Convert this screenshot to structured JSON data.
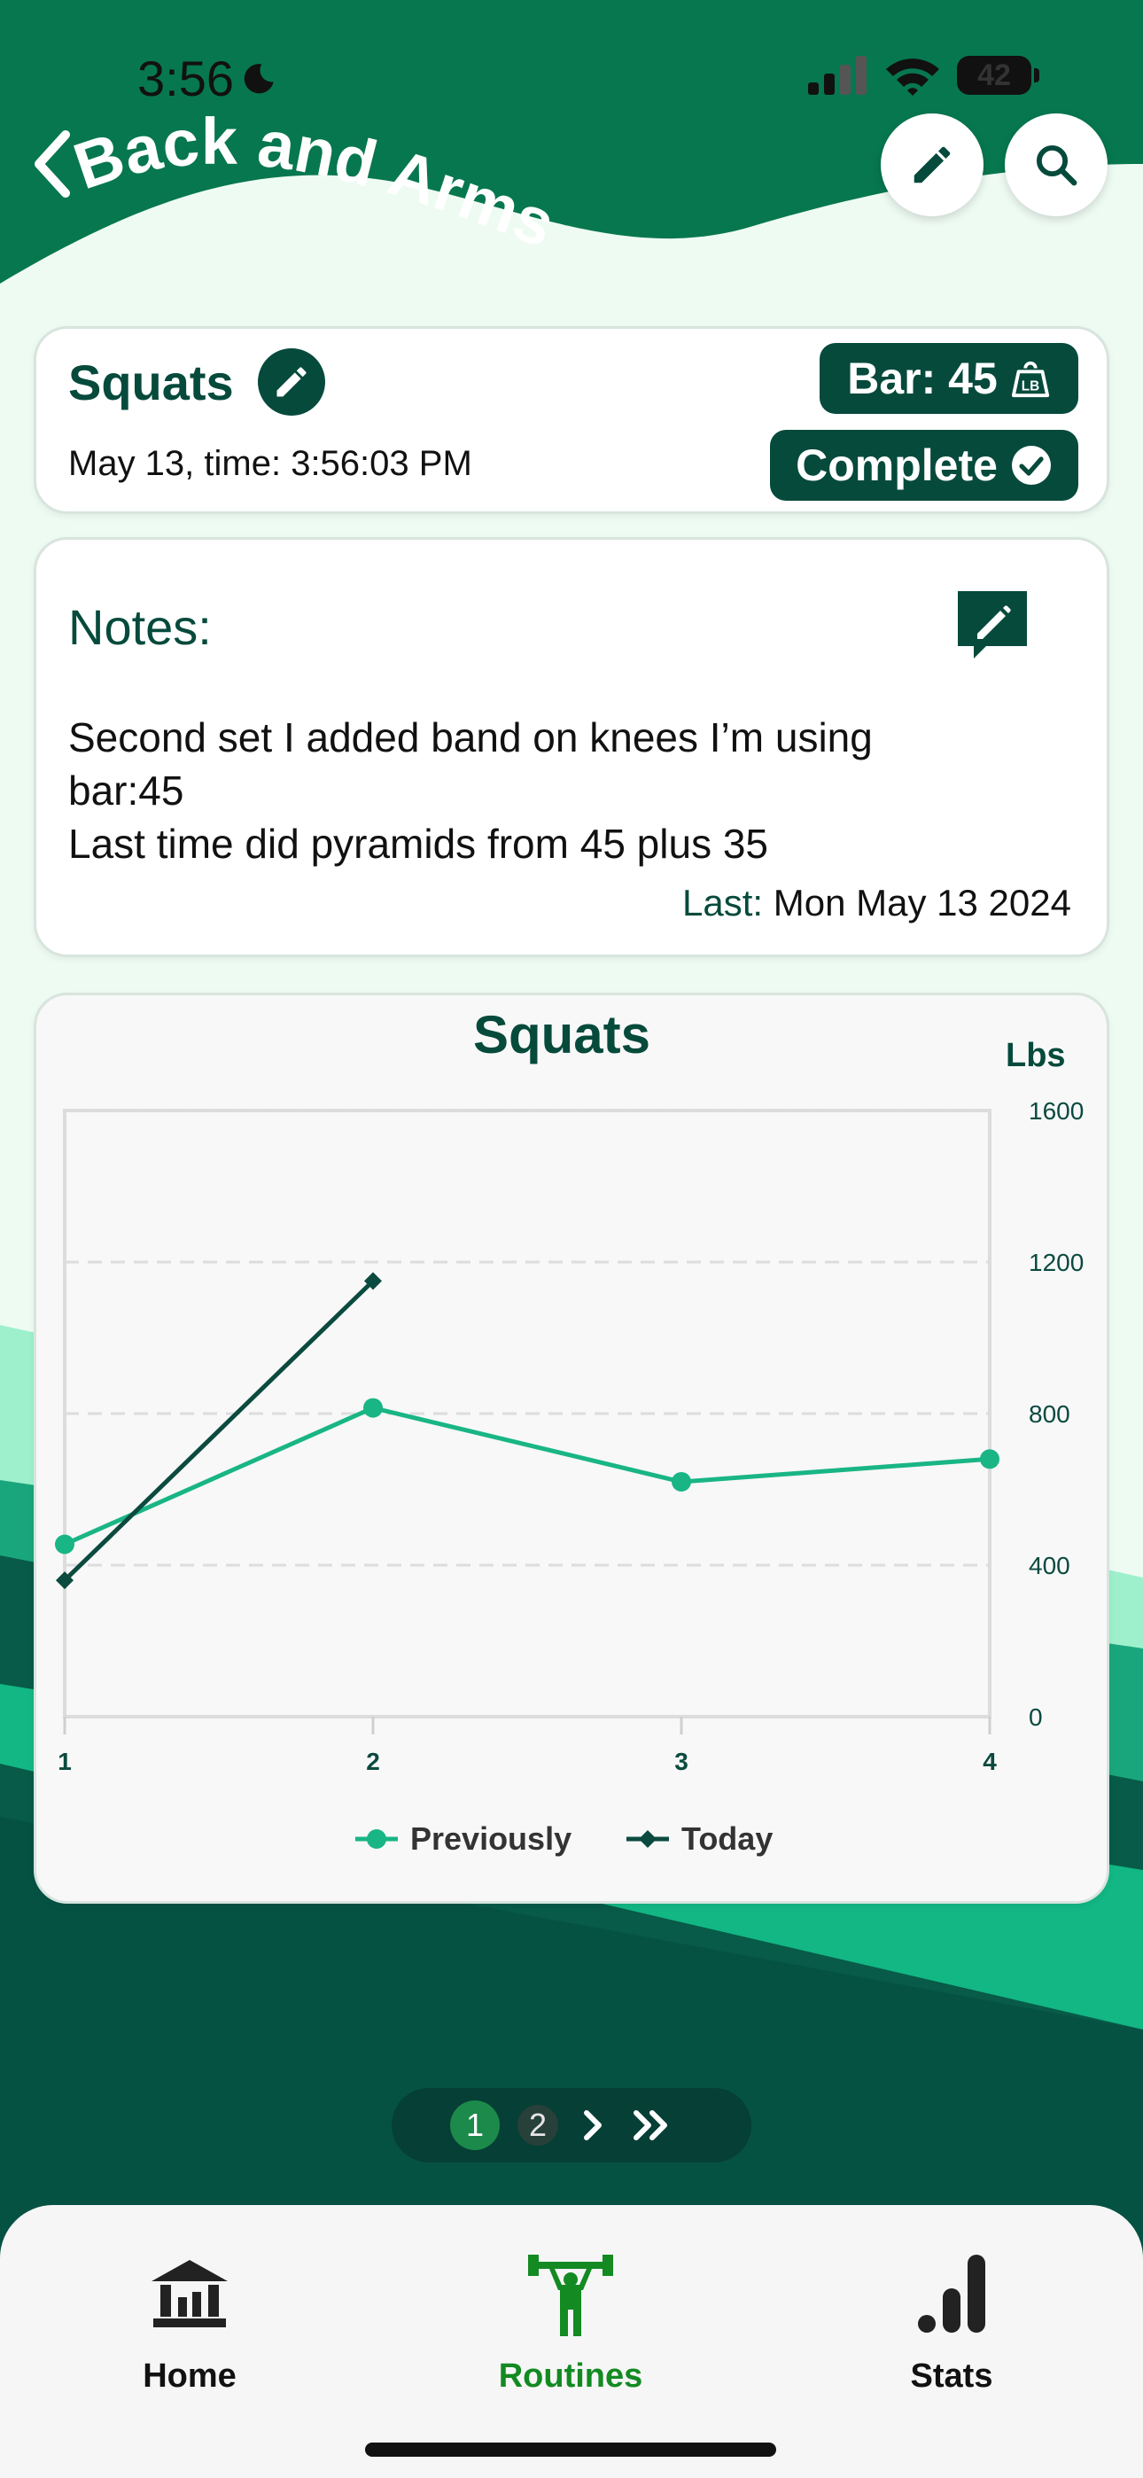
{
  "status_bar": {
    "time": "3:56",
    "battery": "42"
  },
  "header": {
    "title": "Back and Arms"
  },
  "exercise": {
    "name": "Squats",
    "date_time": "May 13, time: 3:56:03 PM",
    "bar_label": "Bar: 45",
    "complete_label": "Complete"
  },
  "notes": {
    "title": "Notes:",
    "lines": [
      "Second set I added band on knees I’m using",
      "bar:45",
      "Last time did pyramids from 45 plus 35"
    ],
    "last_label": "Last:",
    "last_value": "Mon May 13 2024"
  },
  "chart_data": {
    "type": "line",
    "title": "Squats",
    "ylabel": "Lbs",
    "x": [
      1,
      2,
      3,
      4
    ],
    "ylim": [
      0,
      1600
    ],
    "yticks": [
      0,
      400,
      800,
      1200,
      1600
    ],
    "grid": true,
    "legend_position": "bottom",
    "series": [
      {
        "name": "Previously",
        "marker": "circle",
        "color": "#19b585",
        "values": [
          455,
          815,
          620,
          680
        ]
      },
      {
        "name": "Today",
        "marker": "diamond",
        "color": "#0b4a3f",
        "values": [
          360,
          1150,
          null,
          null
        ]
      }
    ]
  },
  "pagination": {
    "pages": [
      "1",
      "2"
    ],
    "current": "1"
  },
  "tabs": [
    {
      "label": "Home",
      "icon": "bank-icon"
    },
    {
      "label": "Routines",
      "icon": "weightlifter-icon"
    },
    {
      "label": "Stats",
      "icon": "signal-bars-icon"
    }
  ],
  "colors": {
    "brand_dark": "#064a3c",
    "brand_green": "#0a7a55",
    "accent": "#19b585",
    "active_tab": "#138a22"
  }
}
